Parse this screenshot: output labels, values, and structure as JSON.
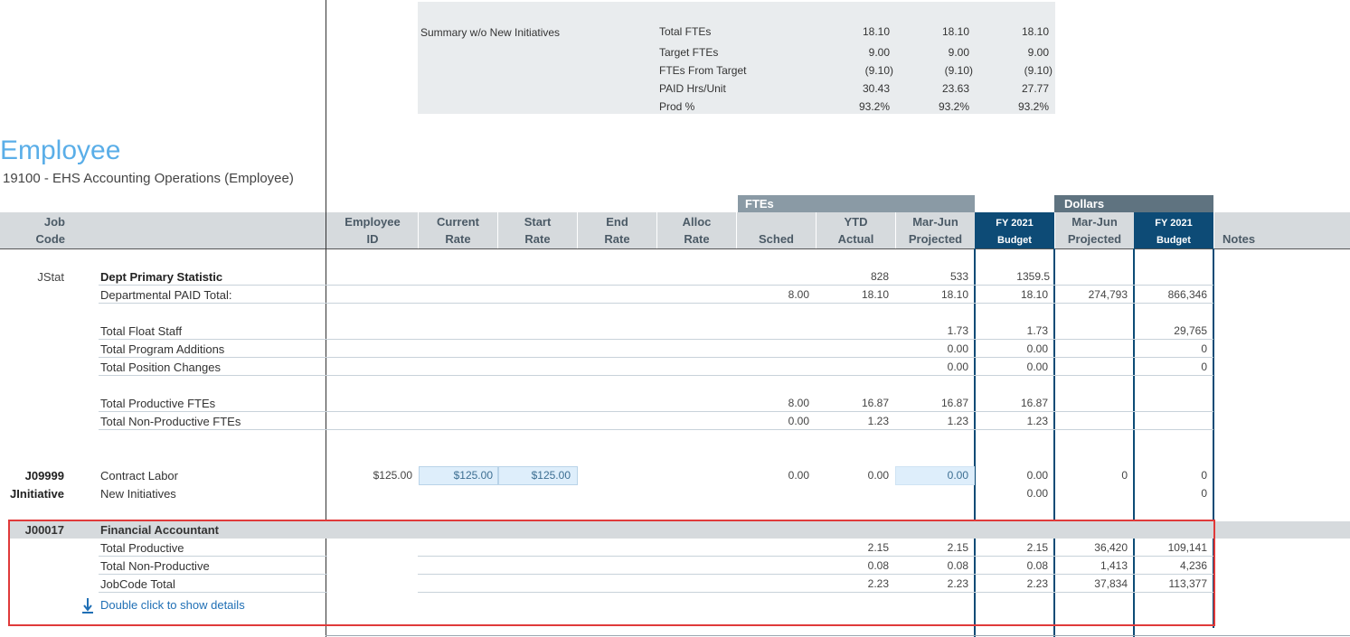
{
  "summary": {
    "title": "Summary w/o New Initiatives",
    "rows": [
      {
        "label": "Total FTEs",
        "v1": "18.10",
        "v2": "18.10",
        "v3": "18.10"
      },
      {
        "label": "Target FTEs",
        "v1": "9.00",
        "v2": "9.00",
        "v3": "9.00"
      },
      {
        "label": "FTEs From Target",
        "v1": "(9.10)",
        "v2": "(9.10)",
        "v3": "(9.10)"
      },
      {
        "label": "PAID Hrs/Unit",
        "v1": "30.43",
        "v2": "23.63",
        "v3": "27.77"
      },
      {
        "label": "Prod %",
        "v1": "93.2%",
        "v2": "93.2%",
        "v3": "93.2%"
      }
    ]
  },
  "page": {
    "title": "Employee",
    "subtitle": "19100 - EHS Accounting Operations (Employee)"
  },
  "groups": {
    "ftes": "FTEs",
    "dollars": "Dollars"
  },
  "columns": {
    "job_code_1": "Job",
    "job_code_2": "Code",
    "employee_id_1": "Employee",
    "employee_id_2": "ID",
    "current_rate_1": "Current",
    "current_rate_2": "Rate",
    "start_rate_1": "Start",
    "start_rate_2": "Rate",
    "end_rate_1": "End",
    "end_rate_2": "Rate",
    "alloc_rate_1": "Alloc",
    "alloc_rate_2": "Rate",
    "sched": "Sched",
    "ytd_1": "YTD",
    "ytd_2": "Actual",
    "marjun_1": "Mar-Jun",
    "marjun_2": "Projected",
    "fy_1": "FY 2021",
    "fy_2": "Budget",
    "dmarjun_1": "Mar-Jun",
    "dmarjun_2": "Projected",
    "dfy_1": "FY 2021",
    "dfy_2": "Budget",
    "notes": "Notes"
  },
  "rows": {
    "jstat_code": "JStat",
    "dept_primary": {
      "label": "Dept Primary Statistic",
      "ytd": "828",
      "marjun": "533",
      "fy": "1359.5"
    },
    "dept_paid": {
      "label": "Departmental PAID Total:",
      "sched": "8.00",
      "ytd": "18.10",
      "marjun": "18.10",
      "fy": "18.10",
      "dmarjun": "274,793",
      "dfy": "866,346"
    },
    "float": {
      "label": "Total Float Staff",
      "marjun": "1.73",
      "fy": "1.73",
      "dfy": "29,765"
    },
    "program": {
      "label": "Total Program Additions",
      "marjun": "0.00",
      "fy": "0.00",
      "dfy": "0"
    },
    "position": {
      "label": "Total Position Changes",
      "marjun": "0.00",
      "fy": "0.00",
      "dfy": "0"
    },
    "productive": {
      "label": "Total Productive FTEs",
      "sched": "8.00",
      "ytd": "16.87",
      "marjun": "16.87",
      "fy": "16.87"
    },
    "nonproductive": {
      "label": "Total Non-Productive FTEs",
      "sched": "0.00",
      "ytd": "1.23",
      "marjun": "1.23",
      "fy": "1.23"
    },
    "contract": {
      "code": "J09999",
      "label": "Contract Labor",
      "employee_id": "$125.00",
      "current_rate": "$125.00",
      "start_rate": "$125.00",
      "sched": "0.00",
      "ytd": "0.00",
      "marjun": "0.00",
      "fy": "0.00",
      "dmarjun": "0",
      "dfy": "0"
    },
    "initiatives": {
      "code": "JInitiative",
      "label": "New Initiatives",
      "fy": "0.00",
      "dfy": "0"
    }
  },
  "jobgroup": {
    "code": "J00017",
    "label": "Financial Accountant",
    "rows": [
      {
        "label": "Total Productive",
        "ytd": "2.15",
        "marjun": "2.15",
        "fy": "2.15",
        "dmarjun": "36,420",
        "dfy": "109,141"
      },
      {
        "label": "Total Non-Productive",
        "ytd": "0.08",
        "marjun": "0.08",
        "fy": "0.08",
        "dmarjun": "1,413",
        "dfy": "4,236"
      },
      {
        "label": "JobCode Total",
        "ytd": "2.23",
        "marjun": "2.23",
        "fy": "2.23",
        "dmarjun": "37,834",
        "dfy": "113,377"
      }
    ],
    "details_link": "Double click to show details"
  },
  "colors": {
    "accent_blue": "#0d4b76",
    "title_blue": "#5aaee8",
    "highlight_red": "#e03a3a",
    "link_blue": "#1f6fb5"
  }
}
